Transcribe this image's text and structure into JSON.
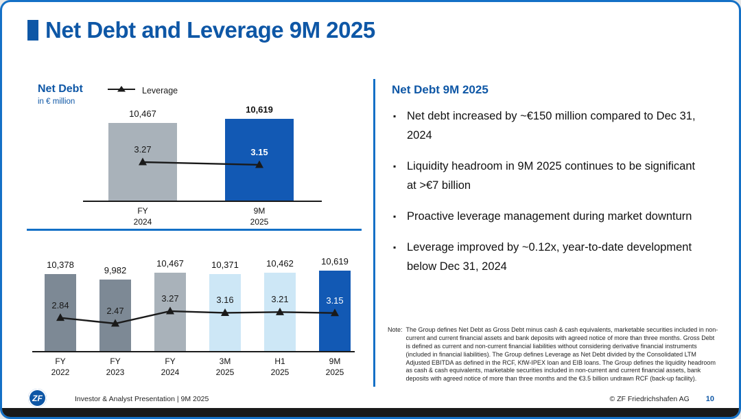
{
  "title": "Net Debt and Leverage 9M 2025",
  "left": {
    "chart_title": "Net Debt",
    "chart_subtitle": "in € million",
    "legend_label": "Leverage"
  },
  "chart_data": [
    {
      "type": "bar",
      "title": "Net Debt (in € million) with Leverage — FY 2024 vs 9M 2025",
      "categories": [
        "FY\n2024",
        "9M\n2025"
      ],
      "series": [
        {
          "name": "Net Debt",
          "type": "bar",
          "values": [
            10467,
            10619
          ],
          "labels": [
            "10,467",
            "10,619"
          ],
          "bold": [
            false,
            true
          ],
          "colors": [
            "#a9b2ba",
            "#1259b4"
          ]
        },
        {
          "name": "Leverage",
          "type": "line",
          "values": [
            3.27,
            3.15
          ],
          "labels": [
            "3.27",
            "3.15"
          ],
          "bold": [
            false,
            true
          ],
          "label_colors": [
            "#1a1a1a",
            "#ffffff"
          ]
        }
      ]
    },
    {
      "type": "bar",
      "title": "Net Debt (in € million) with Leverage — history FY 2022 to 9M 2025",
      "categories": [
        "FY\n2022",
        "FY\n2023",
        "FY\n2024",
        "3M\n2025",
        "H1\n2025",
        "9M\n2025"
      ],
      "series": [
        {
          "name": "Net Debt",
          "type": "bar",
          "values": [
            10378,
            9982,
            10467,
            10371,
            10462,
            10619
          ],
          "labels": [
            "10,378",
            "9,982",
            "10,467",
            "10,371",
            "10,462",
            "10,619"
          ],
          "bold": [
            false,
            false,
            false,
            false,
            false,
            false
          ],
          "colors": [
            "#7d8995",
            "#7d8995",
            "#a9b2ba",
            "#cde7f6",
            "#cde7f6",
            "#1259b4"
          ]
        },
        {
          "name": "Leverage",
          "type": "line",
          "values": [
            2.84,
            2.47,
            3.27,
            3.16,
            3.21,
            3.15
          ],
          "labels": [
            "2.84",
            "2.47",
            "3.27",
            "3.16",
            "3.21",
            "3.15"
          ],
          "bold": [
            false,
            false,
            false,
            false,
            false,
            false
          ],
          "label_colors": [
            "#1a1a1a",
            "#1a1a1a",
            "#1a1a1a",
            "#1a1a1a",
            "#1a1a1a",
            "#ffffff"
          ]
        }
      ]
    }
  ],
  "right": {
    "title": "Net Debt 9M 2025",
    "bullets": [
      "Net debt increased by ~€150 million compared to Dec 31, 2024",
      "Liquidity headroom in 9M 2025 continues to be significant at >€7 billion",
      "Proactive leverage management during market downturn",
      "Leverage improved by ~0.12x, year-to-date development below Dec 31, 2024"
    ],
    "note_label": "Note:",
    "note": "The Group defines Net Debt as Gross Debt minus cash & cash equivalents, marketable securities included in non-current and current financial assets and bank deposits with agreed notice of more than three months. Gross Debt is defined as current and non-current financial liabilities without considering derivative financial instruments (included in financial liabilities). The Group defines Leverage as Net Debt divided by the Consolidated LTM Adjusted EBITDA as defined in the RCF, KfW-IPEX loan and EIB loans. The Group defines the liquidity headroom as cash & cash equivalents, marketable securities included in non-current and current financial assets, bank deposits with agreed notice of more than three months and the €3.5 billion undrawn RCF (back-up facility)."
  },
  "footer": {
    "logo": "ZF",
    "left": "Investor & Analyst Presentation | 9M 2025",
    "copyright": "© ZF Friedrichshafen AG",
    "page": "10"
  },
  "colors": {
    "brand_blue": "#0e57a6",
    "bar_blue": "#1259b4",
    "bar_gray": "#a9b2ba",
    "bar_dark_gray": "#7d8995",
    "bar_light_blue": "#cde7f6",
    "divider_blue": "#1470c6",
    "line_black": "#1a1a1a"
  }
}
